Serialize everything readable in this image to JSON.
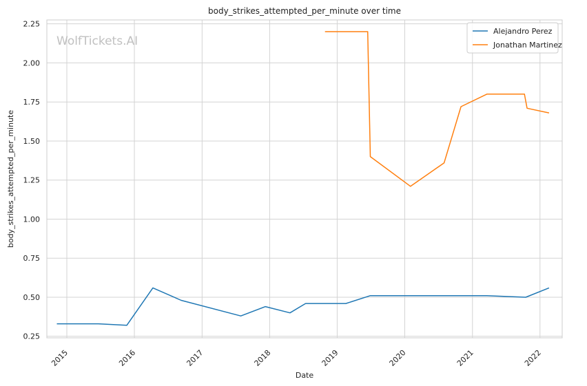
{
  "chart_data": {
    "type": "line",
    "title": "body_strikes_attempted_per_minute over time",
    "xlabel": "Date",
    "ylabel": "body_strikes_attempted_per_minute",
    "watermark": "WolfTickets.AI",
    "x_ticks": [
      "2015",
      "2016",
      "2017",
      "2018",
      "2019",
      "2020",
      "2021",
      "2022"
    ],
    "y_ticks": [
      "0.25",
      "0.50",
      "0.75",
      "1.00",
      "1.25",
      "1.50",
      "1.75",
      "2.00",
      "2.25"
    ],
    "xlim": [
      "2014-09-15",
      "2022-05-01"
    ],
    "ylim": [
      0.24,
      2.275
    ],
    "grid": true,
    "legend_position": "top-right",
    "series": [
      {
        "name": "Alejandro Perez",
        "color": "#1f77b4",
        "points": [
          [
            "2014-11-08",
            0.33
          ],
          [
            "2015-06-20",
            0.33
          ],
          [
            "2015-11-21",
            0.32
          ],
          [
            "2016-04-10",
            0.56
          ],
          [
            "2016-09-10",
            0.48
          ],
          [
            "2017-07-29",
            0.38
          ],
          [
            "2017-12-09",
            0.44
          ],
          [
            "2018-04-21",
            0.4
          ],
          [
            "2018-07-14",
            0.46
          ],
          [
            "2019-02-17",
            0.46
          ],
          [
            "2019-06-29",
            0.51
          ],
          [
            "2021-03-20",
            0.51
          ],
          [
            "2021-10-16",
            0.5
          ],
          [
            "2022-02-19",
            0.56
          ]
        ]
      },
      {
        "name": "Jonathan Martinez",
        "color": "#ff7f0e",
        "points": [
          [
            "2018-10-27",
            2.2
          ],
          [
            "2019-06-15",
            2.2
          ],
          [
            "2019-06-29",
            1.4
          ],
          [
            "2020-02-01",
            1.21
          ],
          [
            "2020-08-01",
            1.36
          ],
          [
            "2020-10-31",
            1.72
          ],
          [
            "2021-03-20",
            1.8
          ],
          [
            "2021-10-09",
            1.8
          ],
          [
            "2021-10-23",
            1.71
          ],
          [
            "2022-02-19",
            1.68
          ]
        ]
      }
    ]
  }
}
